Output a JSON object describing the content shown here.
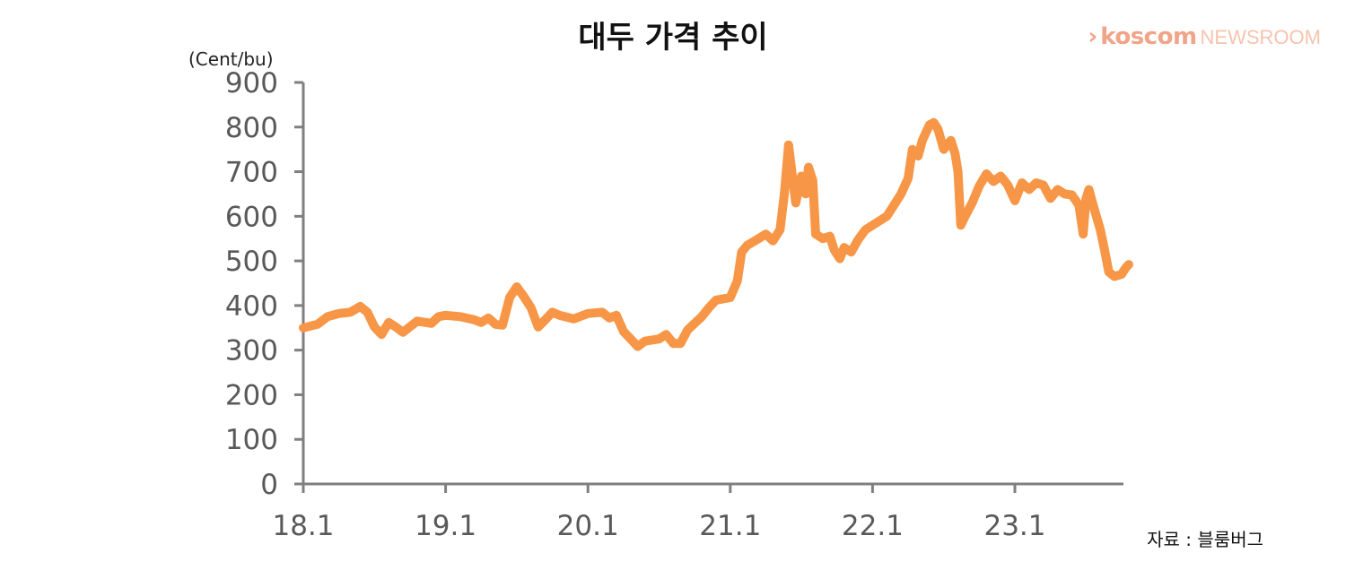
{
  "chart_data": {
    "type": "line",
    "title": "대두 가격 추이",
    "ylabel": "(Cent/bu)",
    "ylim": [
      0,
      900
    ],
    "yticks": [
      "0",
      "100",
      "200",
      "300",
      "400",
      "500",
      "600",
      "700",
      "800",
      "900"
    ],
    "xticks": [
      "18.1",
      "19.1",
      "20.1",
      "21.1",
      "22.1",
      "23.1"
    ],
    "xlim": [
      2018.0,
      2023.8
    ],
    "grid": false,
    "series": [
      {
        "color": "#f79646",
        "points": [
          [
            2018.0,
            350
          ],
          [
            2018.1,
            358
          ],
          [
            2018.17,
            375
          ],
          [
            2018.25,
            382
          ],
          [
            2018.33,
            385
          ],
          [
            2018.4,
            398
          ],
          [
            2018.45,
            385
          ],
          [
            2018.5,
            352
          ],
          [
            2018.55,
            335
          ],
          [
            2018.6,
            362
          ],
          [
            2018.65,
            352
          ],
          [
            2018.7,
            340
          ],
          [
            2018.8,
            365
          ],
          [
            2018.9,
            360
          ],
          [
            2018.95,
            375
          ],
          [
            2019.0,
            378
          ],
          [
            2019.1,
            375
          ],
          [
            2019.2,
            368
          ],
          [
            2019.25,
            362
          ],
          [
            2019.3,
            372
          ],
          [
            2019.35,
            358
          ],
          [
            2019.4,
            356
          ],
          [
            2019.45,
            418
          ],
          [
            2019.5,
            442
          ],
          [
            2019.55,
            420
          ],
          [
            2019.6,
            395
          ],
          [
            2019.65,
            352
          ],
          [
            2019.7,
            368
          ],
          [
            2019.75,
            385
          ],
          [
            2019.8,
            378
          ],
          [
            2019.9,
            370
          ],
          [
            2020.0,
            382
          ],
          [
            2020.1,
            385
          ],
          [
            2020.15,
            372
          ],
          [
            2020.2,
            378
          ],
          [
            2020.25,
            342
          ],
          [
            2020.3,
            325
          ],
          [
            2020.35,
            308
          ],
          [
            2020.4,
            320
          ],
          [
            2020.5,
            325
          ],
          [
            2020.55,
            335
          ],
          [
            2020.6,
            315
          ],
          [
            2020.65,
            315
          ],
          [
            2020.7,
            345
          ],
          [
            2020.75,
            360
          ],
          [
            2020.8,
            375
          ],
          [
            2020.85,
            395
          ],
          [
            2020.9,
            412
          ],
          [
            2021.0,
            418
          ],
          [
            2021.05,
            455
          ],
          [
            2021.08,
            520
          ],
          [
            2021.12,
            535
          ],
          [
            2021.2,
            550
          ],
          [
            2021.25,
            560
          ],
          [
            2021.3,
            545
          ],
          [
            2021.35,
            570
          ],
          [
            2021.38,
            650
          ],
          [
            2021.41,
            760
          ],
          [
            2021.44,
            680
          ],
          [
            2021.46,
            630
          ],
          [
            2021.5,
            690
          ],
          [
            2021.53,
            650
          ],
          [
            2021.55,
            710
          ],
          [
            2021.58,
            680
          ],
          [
            2021.6,
            560
          ],
          [
            2021.65,
            550
          ],
          [
            2021.7,
            555
          ],
          [
            2021.73,
            525
          ],
          [
            2021.77,
            505
          ],
          [
            2021.8,
            530
          ],
          [
            2021.85,
            520
          ],
          [
            2021.9,
            548
          ],
          [
            2021.95,
            570
          ],
          [
            2022.0,
            580
          ],
          [
            2022.05,
            590
          ],
          [
            2022.1,
            600
          ],
          [
            2022.15,
            625
          ],
          [
            2022.2,
            650
          ],
          [
            2022.25,
            685
          ],
          [
            2022.28,
            750
          ],
          [
            2022.32,
            735
          ],
          [
            2022.35,
            770
          ],
          [
            2022.4,
            805
          ],
          [
            2022.43,
            810
          ],
          [
            2022.46,
            795
          ],
          [
            2022.5,
            750
          ],
          [
            2022.55,
            770
          ],
          [
            2022.58,
            740
          ],
          [
            2022.6,
            700
          ],
          [
            2022.62,
            580
          ],
          [
            2022.65,
            600
          ],
          [
            2022.7,
            630
          ],
          [
            2022.75,
            668
          ],
          [
            2022.8,
            695
          ],
          [
            2022.85,
            678
          ],
          [
            2022.9,
            690
          ],
          [
            2022.95,
            670
          ],
          [
            2023.0,
            635
          ],
          [
            2023.05,
            675
          ],
          [
            2023.1,
            660
          ],
          [
            2023.15,
            675
          ],
          [
            2023.2,
            670
          ],
          [
            2023.25,
            640
          ],
          [
            2023.3,
            660
          ],
          [
            2023.35,
            650
          ],
          [
            2023.4,
            648
          ],
          [
            2023.45,
            625
          ],
          [
            2023.48,
            560
          ],
          [
            2023.5,
            640
          ],
          [
            2023.52,
            660
          ],
          [
            2023.55,
            625
          ],
          [
            2023.6,
            570
          ],
          [
            2023.63,
            525
          ],
          [
            2023.66,
            475
          ],
          [
            2023.7,
            465
          ],
          [
            2023.75,
            470
          ],
          [
            2023.78,
            485
          ],
          [
            2023.8,
            492
          ]
        ]
      }
    ]
  },
  "logo": {
    "chevron": "›",
    "brand": "koscom",
    "sub": "NEWSROOM"
  },
  "source": "자료 : 블룸버그"
}
